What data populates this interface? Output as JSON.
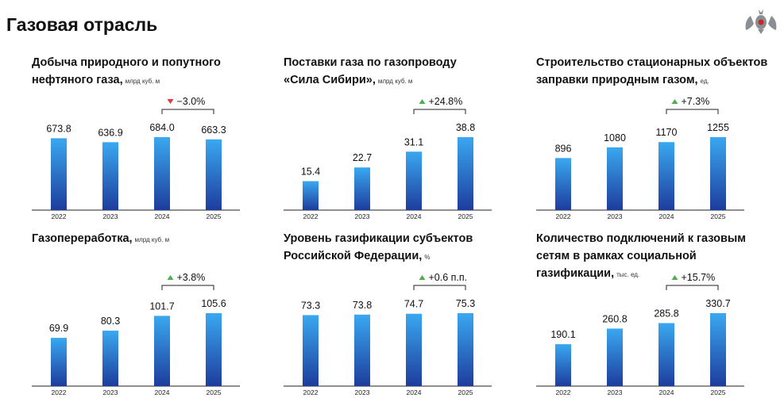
{
  "title": "Газовая отрасль",
  "chart_data": [
    {
      "type": "bar",
      "title_lines": [
        "Добыча природного и попутного",
        "нефтяного газа,"
      ],
      "unit": "млрд куб. м",
      "categories": [
        "2022",
        "2023",
        "2024",
        "2025"
      ],
      "values": [
        673.8,
        636.9,
        684.0,
        663.3
      ],
      "value_labels": [
        "673.8",
        "636.9",
        "684.0",
        "663.3"
      ],
      "change": {
        "label": "−3.0%",
        "direction": "down",
        "color": "#e53935"
      }
    },
    {
      "type": "bar",
      "title_lines": [
        "Поставки газа по газопроводу",
        "«Сила Сибири»,"
      ],
      "unit": "млрд куб. м",
      "categories": [
        "2022",
        "2023",
        "2024",
        "2025"
      ],
      "values": [
        15.4,
        22.7,
        31.1,
        38.8
      ],
      "change": {
        "label": "+24.8%",
        "direction": "up",
        "color": "#4caf50"
      }
    },
    {
      "type": "bar",
      "title_lines": [
        "Строительство стационарных объектов",
        "заправки природным газом,"
      ],
      "unit": "ед.",
      "categories": [
        "2022",
        "2023",
        "2024",
        "2025"
      ],
      "values": [
        896,
        1080,
        1170,
        1255
      ],
      "change": {
        "label": "+7.3%",
        "direction": "up",
        "color": "#4caf50"
      }
    },
    {
      "type": "bar",
      "title_lines": [
        "Газопереработка,"
      ],
      "unit": "млрд куб. м",
      "categories": [
        "2022",
        "2023",
        "2024",
        "2025"
      ],
      "values": [
        69.9,
        80.3,
        101.7,
        105.6
      ],
      "change": {
        "label": "+3.8%",
        "direction": "up",
        "color": "#4caf50"
      }
    },
    {
      "type": "bar",
      "title_lines": [
        "Уровень газификации субъектов",
        "Российской Федерации,"
      ],
      "unit": "%",
      "categories": [
        "2022",
        "2023",
        "2024",
        "2025"
      ],
      "values": [
        73.3,
        73.8,
        74.7,
        75.3
      ],
      "change": {
        "label": "+0.6 п.п.",
        "direction": "up",
        "color": "#4caf50"
      }
    },
    {
      "type": "bar",
      "title_lines": [
        "Количество подключений к газовым",
        "сетям в рамках социальной",
        "газификации,"
      ],
      "unit": "тыс. ед.",
      "categories": [
        "2022",
        "2023",
        "2024",
        "2025"
      ],
      "values": [
        190.1,
        260.8,
        285.8,
        330.7
      ],
      "change": {
        "label": "+15.7%",
        "direction": "up",
        "color": "#4caf50"
      }
    }
  ]
}
